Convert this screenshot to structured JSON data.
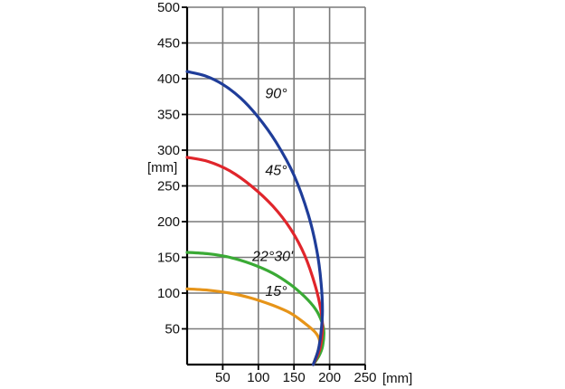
{
  "chart_data": {
    "type": "line",
    "title": "",
    "xlabel": "[mm]",
    "ylabel": "[mm]",
    "xlim": [
      0,
      250
    ],
    "ylim": [
      0,
      500
    ],
    "x_ticks": [
      "50",
      "100",
      "150",
      "200",
      "250"
    ],
    "y_ticks": [
      "50",
      "100",
      "150",
      "200",
      "250",
      "300",
      "350",
      "400",
      "450",
      "500"
    ],
    "grid": true,
    "legend": "none",
    "series": [
      {
        "name": "90°",
        "color": "#1f3d99",
        "points": [
          [
            0,
            410
          ],
          [
            25,
            404
          ],
          [
            50,
            392
          ],
          [
            75,
            373
          ],
          [
            100,
            346
          ],
          [
            125,
            311
          ],
          [
            150,
            265
          ],
          [
            170,
            210
          ],
          [
            182,
            160
          ],
          [
            188,
            115
          ],
          [
            190,
            75
          ],
          [
            188,
            45
          ],
          [
            184,
            20
          ],
          [
            177,
            0
          ]
        ]
      },
      {
        "name": "45°",
        "color": "#e0252b",
        "points": [
          [
            0,
            290
          ],
          [
            30,
            284
          ],
          [
            60,
            271
          ],
          [
            90,
            250
          ],
          [
            120,
            222
          ],
          [
            145,
            190
          ],
          [
            165,
            153
          ],
          [
            180,
            110
          ],
          [
            188,
            75
          ],
          [
            190,
            50
          ],
          [
            187,
            25
          ],
          [
            182,
            10
          ],
          [
            177,
            0
          ]
        ]
      },
      {
        "name": "22°30'",
        "color": "#3aaa35",
        "points": [
          [
            0,
            157
          ],
          [
            30,
            155
          ],
          [
            60,
            150
          ],
          [
            90,
            141
          ],
          [
            120,
            128
          ],
          [
            145,
            112
          ],
          [
            165,
            95
          ],
          [
            180,
            78
          ],
          [
            189,
            60
          ],
          [
            192,
            45
          ],
          [
            190,
            25
          ],
          [
            185,
            12
          ],
          [
            177,
            0
          ]
        ]
      },
      {
        "name": "15°",
        "color": "#e69419",
        "points": [
          [
            0,
            106
          ],
          [
            30,
            104
          ],
          [
            60,
            100
          ],
          [
            90,
            93
          ],
          [
            120,
            83
          ],
          [
            145,
            72
          ],
          [
            165,
            58
          ],
          [
            180,
            45
          ],
          [
            186,
            33
          ],
          [
            184,
            20
          ],
          [
            180,
            8
          ],
          [
            177,
            0
          ]
        ]
      }
    ],
    "annotations": [
      {
        "text": "90°",
        "x": 125,
        "y": 373
      },
      {
        "text": "45°",
        "x": 125,
        "y": 265
      },
      {
        "text": "22°30'",
        "x": 120,
        "y": 145
      },
      {
        "text": "15°",
        "x": 125,
        "y": 96
      }
    ]
  }
}
